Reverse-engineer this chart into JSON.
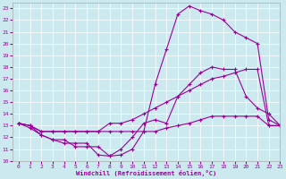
{
  "xlabel": "Windchill (Refroidissement éolien,°C)",
  "xlim": [
    -0.5,
    23
  ],
  "ylim": [
    10,
    23.5
  ],
  "xticks": [
    0,
    1,
    2,
    3,
    4,
    5,
    6,
    7,
    8,
    9,
    10,
    11,
    12,
    13,
    14,
    15,
    16,
    17,
    18,
    19,
    20,
    21,
    22,
    23
  ],
  "yticks": [
    10,
    11,
    12,
    13,
    14,
    15,
    16,
    17,
    18,
    19,
    20,
    21,
    22,
    23
  ],
  "bg_color": "#cce9f0",
  "line_color": "#990099",
  "line1_x": [
    0,
    1,
    2,
    3,
    4,
    5,
    6,
    7,
    8,
    9,
    10,
    11,
    12,
    13,
    14,
    15,
    16,
    17,
    18,
    19,
    20,
    21,
    22,
    23
  ],
  "line1_y": [
    13.2,
    12.8,
    12.2,
    11.8,
    11.5,
    11.5,
    11.5,
    10.5,
    10.4,
    10.5,
    11.0,
    12.5,
    16.5,
    19.5,
    22.5,
    23.2,
    22.8,
    22.5,
    22.0,
    21.0,
    20.5,
    20.0,
    13.5,
    13.0
  ],
  "line2_x": [
    0,
    1,
    2,
    3,
    4,
    5,
    6,
    7,
    8,
    9,
    10,
    11,
    12,
    13,
    14,
    15,
    16,
    17,
    18,
    19,
    20,
    21,
    22,
    23
  ],
  "line2_y": [
    13.2,
    13.0,
    12.2,
    11.8,
    11.8,
    11.2,
    11.2,
    11.2,
    10.4,
    11.0,
    12.0,
    13.2,
    13.5,
    13.2,
    15.5,
    16.5,
    17.5,
    18.0,
    17.8,
    17.8,
    15.5,
    14.5,
    14.0,
    13.0
  ],
  "line3_x": [
    0,
    1,
    2,
    3,
    4,
    5,
    6,
    7,
    8,
    9,
    10,
    11,
    12,
    13,
    14,
    15,
    16,
    17,
    18,
    19,
    20,
    21,
    22,
    23
  ],
  "line3_y": [
    13.2,
    13.0,
    12.5,
    12.5,
    12.5,
    12.5,
    12.5,
    12.5,
    13.2,
    13.2,
    13.5,
    14.0,
    14.5,
    15.0,
    15.5,
    16.0,
    16.5,
    17.0,
    17.2,
    17.5,
    17.8,
    17.8,
    13.0,
    13.0
  ],
  "line4_x": [
    0,
    1,
    2,
    3,
    4,
    5,
    6,
    7,
    8,
    9,
    10,
    11,
    12,
    13,
    14,
    15,
    16,
    17,
    18,
    19,
    20,
    21,
    22,
    23
  ],
  "line4_y": [
    13.2,
    13.0,
    12.5,
    12.5,
    12.5,
    12.5,
    12.5,
    12.5,
    12.5,
    12.5,
    12.5,
    12.5,
    12.5,
    12.8,
    13.0,
    13.2,
    13.5,
    13.8,
    13.8,
    13.8,
    13.8,
    13.8,
    13.0,
    13.0
  ]
}
